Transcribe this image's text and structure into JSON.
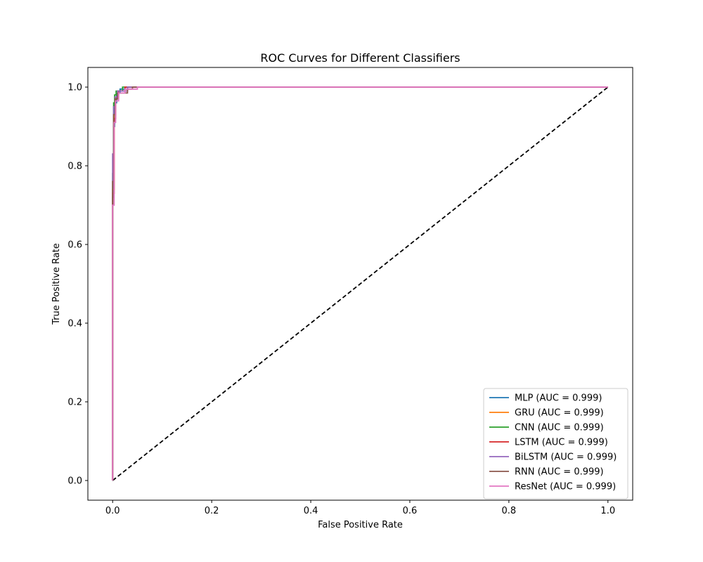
{
  "chart_data": {
    "type": "line",
    "title": "ROC Curves for Different Classifiers",
    "xlabel": "False Positive Rate",
    "ylabel": "True Positive Rate",
    "xlim": [
      -0.05,
      1.05
    ],
    "ylim": [
      -0.05,
      1.05
    ],
    "xticks": [
      "0.0",
      "0.2",
      "0.4",
      "0.6",
      "0.8",
      "1.0"
    ],
    "yticks": [
      "0.0",
      "0.2",
      "0.4",
      "0.6",
      "0.8",
      "1.0"
    ],
    "legend_position": "lower-right",
    "grid": false,
    "series": [
      {
        "name": "MLP (AUC = 0.999)",
        "color": "#1f77b4",
        "x": [
          0,
          0,
          0.002,
          0.002,
          0.004,
          0.004,
          0.008,
          0.008,
          0.015,
          0.015,
          0.03,
          0.03,
          1.0
        ],
        "y": [
          0,
          0.72,
          0.72,
          0.9,
          0.9,
          0.96,
          0.96,
          0.985,
          0.985,
          0.995,
          0.995,
          1.0,
          1.0
        ]
      },
      {
        "name": "GRU (AUC = 0.999)",
        "color": "#ff7f0e",
        "x": [
          0,
          0,
          0.003,
          0.003,
          0.006,
          0.006,
          0.012,
          0.012,
          0.03,
          0.03,
          1.0
        ],
        "y": [
          0,
          0.74,
          0.74,
          0.93,
          0.93,
          0.975,
          0.975,
          0.99,
          0.99,
          1.0,
          1.0
        ]
      },
      {
        "name": "CNN (AUC = 0.999)",
        "color": "#2ca02c",
        "x": [
          0,
          0,
          0.002,
          0.002,
          0.004,
          0.004,
          0.007,
          0.007,
          0.02,
          0.02,
          1.0
        ],
        "y": [
          0,
          0.78,
          0.78,
          0.96,
          0.96,
          0.98,
          0.98,
          0.99,
          0.99,
          1.0,
          1.0
        ]
      },
      {
        "name": "LSTM (AUC = 0.999)",
        "color": "#d62728",
        "x": [
          0,
          0,
          0.003,
          0.003,
          0.006,
          0.006,
          0.012,
          0.012,
          0.025,
          0.025,
          1.0
        ],
        "y": [
          0,
          0.73,
          0.73,
          0.92,
          0.92,
          0.97,
          0.97,
          0.99,
          0.99,
          1.0,
          1.0
        ]
      },
      {
        "name": "BiLSTM (AUC = 0.999)",
        "color": "#9467bd",
        "x": [
          0,
          0,
          0.002,
          0.002,
          0.005,
          0.005,
          0.01,
          0.01,
          0.03,
          0.03,
          1.0
        ],
        "y": [
          0,
          0.83,
          0.83,
          0.95,
          0.95,
          0.975,
          0.975,
          0.99,
          0.99,
          1.0,
          1.0
        ]
      },
      {
        "name": "RNN (AUC = 0.999)",
        "color": "#8c564b",
        "x": [
          0,
          0,
          0.002,
          0.002,
          0.005,
          0.005,
          0.01,
          0.01,
          0.03,
          0.03,
          0.04,
          0.04,
          1.0
        ],
        "y": [
          0,
          0.76,
          0.76,
          0.93,
          0.93,
          0.97,
          0.97,
          0.985,
          0.985,
          0.995,
          0.995,
          1.0,
          1.0
        ]
      },
      {
        "name": "ResNet (AUC = 0.999)",
        "color": "#e377c2",
        "x": [
          0,
          0,
          0.003,
          0.003,
          0.006,
          0.006,
          0.012,
          0.012,
          0.025,
          0.025,
          0.05,
          0.05,
          1.0
        ],
        "y": [
          0,
          0.7,
          0.7,
          0.91,
          0.91,
          0.965,
          0.965,
          0.985,
          0.985,
          0.995,
          0.995,
          1.0,
          1.0
        ]
      }
    ],
    "reference_line": {
      "color": "#000000",
      "style": "dashed",
      "x": [
        0,
        1
      ],
      "y": [
        0,
        1
      ]
    }
  }
}
